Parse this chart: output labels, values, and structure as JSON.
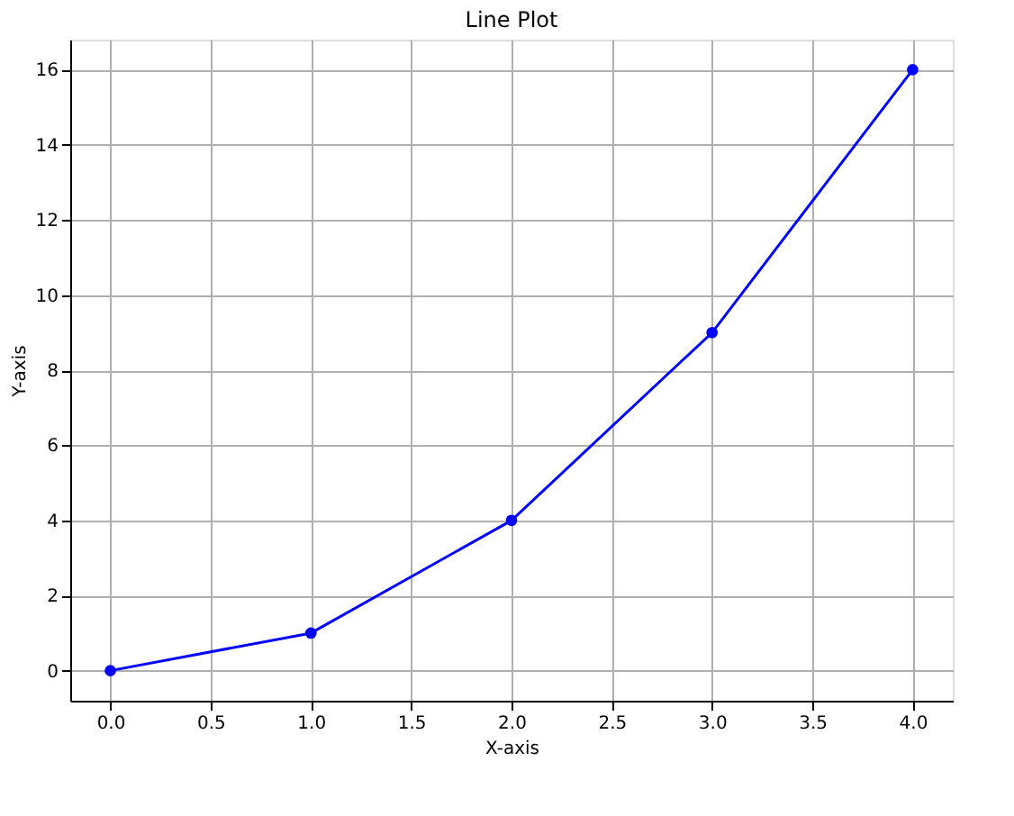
{
  "chart_data": {
    "type": "line",
    "title": "Line Plot",
    "xlabel": "X-axis",
    "ylabel": "Y-axis",
    "x": [
      0,
      1,
      2,
      3,
      4
    ],
    "series": [
      {
        "color": "#0000ff",
        "values": [
          0,
          1,
          4,
          9,
          16
        ]
      }
    ],
    "xlim": [
      -0.2,
      4.2
    ],
    "xticks": [
      {
        "value": 0,
        "label": "0.0"
      },
      {
        "value": 0.5,
        "label": "0.5"
      },
      {
        "value": 1,
        "label": "1.0"
      },
      {
        "value": 1.5,
        "label": "1.5"
      },
      {
        "value": 2,
        "label": "2.0"
      },
      {
        "value": 2.5,
        "label": "2.5"
      },
      {
        "value": 3,
        "label": "3.0"
      },
      {
        "value": 3.5,
        "label": "3.5"
      },
      {
        "value": 4,
        "label": "4.0"
      }
    ],
    "ylim": [
      -0.8,
      16.8
    ],
    "yticks": [
      0,
      2,
      4,
      6,
      8,
      10,
      12,
      14,
      16
    ],
    "grid": true,
    "marker": "circle",
    "line_style": "solid"
  }
}
